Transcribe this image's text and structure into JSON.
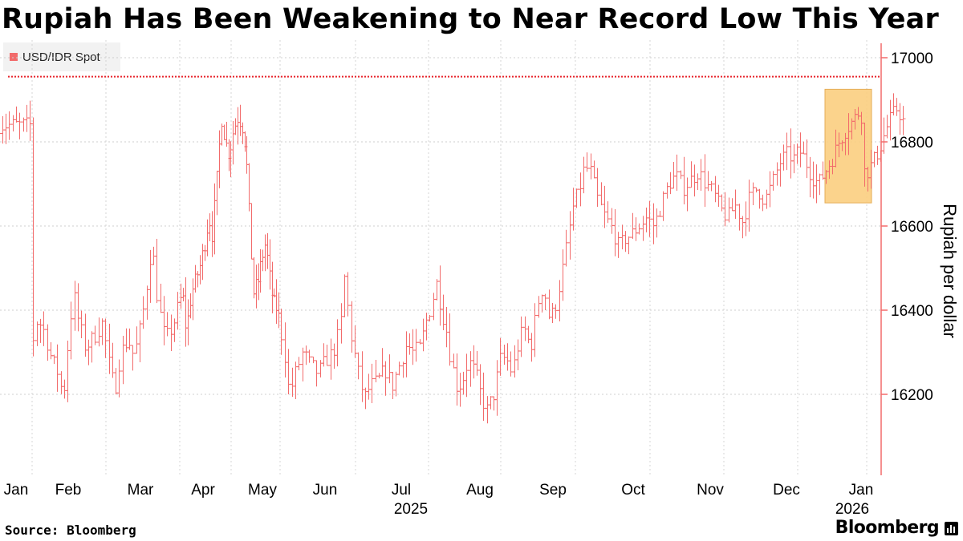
{
  "title": "Rupiah Has Been Weakening to Near Record Low This Year",
  "legend": {
    "label": "USD/IDR Spot",
    "color": "#f26b6b"
  },
  "source": "Source: Bloomberg",
  "brand": "Bloomberg",
  "chart_data": {
    "type": "ohlc",
    "series_name": "USD/IDR Spot",
    "ylabel": "Rupiah per dollar",
    "yticks": [
      16200,
      16400,
      16600,
      16800,
      17000
    ],
    "ylim": [
      16000,
      17050
    ],
    "xlim": [
      0,
      12.5
    ],
    "month_labels": [
      "Jan",
      "Feb",
      "Mar",
      "Apr",
      "May",
      "Jun",
      "Jul",
      "Aug",
      "Sep",
      "Oct",
      "Nov",
      "Dec",
      "Jan"
    ],
    "month_positions": [
      0,
      1,
      2,
      3,
      4,
      5,
      6,
      7,
      8,
      9,
      10,
      11,
      12
    ],
    "year_labels": [
      {
        "text": "2025",
        "month": 5.5
      },
      {
        "text": "2026",
        "month": 12.0
      }
    ],
    "record_line": 16955,
    "highlight": {
      "x0": 11.95,
      "x1": 12.65,
      "y0": 16655,
      "y1": 16925,
      "fill": "#fbcf80"
    },
    "line_color": "#f26b6b",
    "anchors": [
      [
        0.0,
        16320
      ],
      [
        0.07,
        16380
      ],
      [
        0.16,
        16350
      ],
      [
        0.25,
        16290
      ],
      [
        0.35,
        16250
      ],
      [
        0.42,
        16190
      ],
      [
        0.5,
        16350
      ],
      [
        0.56,
        16440
      ],
      [
        0.62,
        16380
      ],
      [
        0.72,
        16310
      ],
      [
        0.85,
        16340
      ],
      [
        0.95,
        16370
      ],
      [
        1.05,
        16260
      ],
      [
        1.12,
        16210
      ],
      [
        1.2,
        16300
      ],
      [
        1.3,
        16330
      ],
      [
        1.38,
        16290
      ],
      [
        1.48,
        16370
      ],
      [
        1.55,
        16460
      ],
      [
        1.62,
        16560
      ],
      [
        1.7,
        16420
      ],
      [
        1.8,
        16330
      ],
      [
        1.9,
        16360
      ],
      [
        1.98,
        16410
      ],
      [
        2.05,
        16440
      ],
      [
        2.12,
        16350
      ],
      [
        2.22,
        16440
      ],
      [
        2.3,
        16470
      ],
      [
        2.4,
        16510
      ],
      [
        2.48,
        16560
      ],
      [
        2.56,
        16620
      ],
      [
        2.62,
        16580
      ],
      [
        2.7,
        16690
      ],
      [
        2.8,
        16860
      ],
      [
        2.88,
        16800
      ],
      [
        2.96,
        16770
      ],
      [
        3.05,
        16830
      ],
      [
        3.14,
        16860
      ],
      [
        3.22,
        16840
      ],
      [
        3.3,
        16780
      ],
      [
        3.37,
        16620
      ],
      [
        3.45,
        16440
      ],
      [
        3.55,
        16470
      ],
      [
        3.62,
        16520
      ],
      [
        3.7,
        16560
      ],
      [
        3.78,
        16480
      ],
      [
        3.85,
        16420
      ],
      [
        3.95,
        16400
      ],
      [
        4.05,
        16310
      ],
      [
        4.12,
        16200
      ],
      [
        4.2,
        16250
      ],
      [
        4.3,
        16300
      ],
      [
        4.4,
        16270
      ],
      [
        4.5,
        16250
      ],
      [
        4.6,
        16280
      ],
      [
        4.7,
        16300
      ],
      [
        4.8,
        16360
      ],
      [
        4.85,
        16480
      ],
      [
        4.95,
        16330
      ],
      [
        5.05,
        16240
      ],
      [
        5.12,
        16190
      ],
      [
        5.2,
        16220
      ],
      [
        5.3,
        16230
      ],
      [
        5.4,
        16260
      ],
      [
        5.5,
        16220
      ],
      [
        5.6,
        16270
      ],
      [
        5.7,
        16320
      ],
      [
        5.78,
        16300
      ],
      [
        5.88,
        16310
      ],
      [
        5.96,
        16370
      ],
      [
        6.05,
        16420
      ],
      [
        6.1,
        16470
      ],
      [
        6.18,
        16400
      ],
      [
        6.25,
        16350
      ],
      [
        6.3,
        16290
      ],
      [
        6.4,
        16210
      ],
      [
        6.48,
        16240
      ],
      [
        6.55,
        16280
      ],
      [
        6.65,
        16250
      ],
      [
        6.72,
        16200
      ],
      [
        6.8,
        16160
      ],
      [
        6.9,
        16200
      ],
      [
        7.0,
        16290
      ],
      [
        7.08,
        16280
      ],
      [
        7.15,
        16250
      ],
      [
        7.22,
        16310
      ],
      [
        7.3,
        16360
      ],
      [
        7.4,
        16310
      ],
      [
        7.5,
        16420
      ],
      [
        7.57,
        16460
      ],
      [
        7.65,
        16380
      ],
      [
        7.72,
        16400
      ],
      [
        7.82,
        16490
      ],
      [
        7.88,
        16550
      ],
      [
        7.96,
        16640
      ],
      [
        8.04,
        16680
      ],
      [
        8.12,
        16740
      ],
      [
        8.2,
        16730
      ],
      [
        8.3,
        16660
      ],
      [
        8.4,
        16620
      ],
      [
        8.5,
        16590
      ],
      [
        8.58,
        16550
      ],
      [
        8.66,
        16570
      ],
      [
        8.75,
        16580
      ],
      [
        8.85,
        16600
      ],
      [
        8.95,
        16620
      ],
      [
        9.05,
        16600
      ],
      [
        9.15,
        16650
      ],
      [
        9.25,
        16700
      ],
      [
        9.35,
        16720
      ],
      [
        9.45,
        16690
      ],
      [
        9.55,
        16710
      ],
      [
        9.65,
        16730
      ],
      [
        9.75,
        16700
      ],
      [
        9.85,
        16680
      ],
      [
        9.95,
        16640
      ],
      [
        10.05,
        16620
      ],
      [
        10.15,
        16650
      ],
      [
        10.25,
        16610
      ],
      [
        10.35,
        16670
      ],
      [
        10.45,
        16690
      ],
      [
        10.55,
        16660
      ],
      [
        10.65,
        16700
      ],
      [
        10.75,
        16750
      ],
      [
        10.85,
        16770
      ],
      [
        10.95,
        16760
      ],
      [
        11.02,
        16780
      ],
      [
        11.1,
        16760
      ],
      [
        11.2,
        16720
      ],
      [
        11.3,
        16700
      ],
      [
        11.4,
        16730
      ],
      [
        11.5,
        16760
      ],
      [
        11.6,
        16800
      ],
      [
        11.7,
        16830
      ],
      [
        11.8,
        16850
      ],
      [
        11.88,
        16870
      ],
      [
        11.95,
        16860
      ]
    ],
    "ohlc_note": "Daily OHLC bars for the final weeks of the series in highlighted area",
    "final_segment": [
      [
        11.97,
        16720
      ],
      [
        12.05,
        16740
      ],
      [
        12.12,
        16760
      ],
      [
        12.2,
        16790
      ],
      [
        12.28,
        16830
      ],
      [
        12.36,
        16860
      ],
      [
        12.44,
        16880
      ],
      [
        12.5,
        16860
      ],
      [
        12.55,
        16840
      ]
    ]
  }
}
